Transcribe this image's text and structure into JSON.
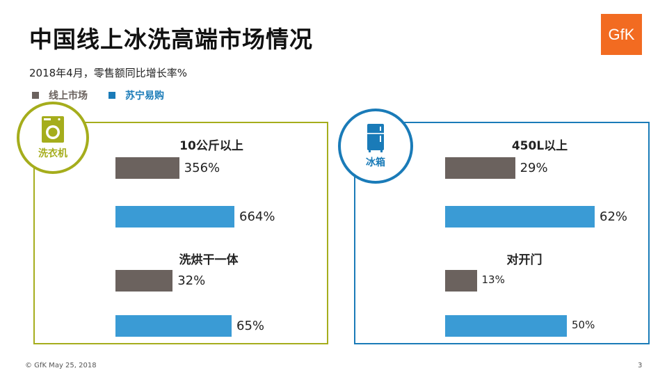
{
  "title": "中国线上冰洗高端市场情况",
  "subtitle": "2018年4月，零售额同比增长率%",
  "logo": "GfK",
  "colors": {
    "online": "#6b625e",
    "suning": "#3a9bd5",
    "washer_border": "#a5ad1c",
    "fridge_border": "#1a7bb8"
  },
  "legend": [
    {
      "label": "线上市场",
      "color": "#6b625e"
    },
    {
      "label": "苏宁易购",
      "color": "#3a9bd5",
      "text_color": "#1a7bb8"
    }
  ],
  "panels": [
    {
      "icon": "washing-machine-icon",
      "caption": "洗衣机"
    },
    {
      "icon": "refrigerator-icon",
      "caption": "冰箱"
    }
  ],
  "chart_data": [
    {
      "type": "bar",
      "panel": "洗衣机",
      "categories": [
        "10公斤以上",
        "洗烘干一体"
      ],
      "series": [
        {
          "name": "线上市场",
          "values": [
            356,
            32
          ]
        },
        {
          "name": "苏宁易购",
          "values": [
            664,
            65
          ]
        }
      ],
      "labels": [
        [
          "356%",
          "664%"
        ],
        [
          "32%",
          "65%"
        ]
      ]
    },
    {
      "type": "bar",
      "panel": "冰箱",
      "categories": [
        "450L以上",
        "对开门"
      ],
      "series": [
        {
          "name": "线上市场",
          "values": [
            29,
            13
          ]
        },
        {
          "name": "苏宁易购",
          "values": [
            62,
            50
          ]
        }
      ],
      "labels": [
        [
          "29%",
          "62%"
        ],
        [
          "13%",
          "50%"
        ]
      ]
    }
  ],
  "footer": {
    "left": "© GfK May 25, 2018",
    "right": "3"
  }
}
